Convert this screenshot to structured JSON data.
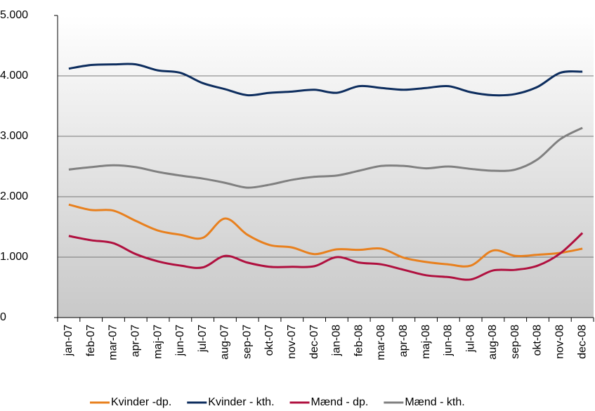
{
  "chart_data": {
    "type": "line",
    "categories": [
      "jan-07",
      "feb-07",
      "mar-07",
      "apr-07",
      "maj-07",
      "jun-07",
      "jul-07",
      "aug-07",
      "sep-07",
      "okt-07",
      "nov-07",
      "dec-07",
      "jan-08",
      "feb-08",
      "mar-08",
      "apr-08",
      "maj-08",
      "jun-08",
      "jul-08",
      "aug-08",
      "sep-08",
      "okt-08",
      "nov-08",
      "dec-08"
    ],
    "series": [
      {
        "name": "Kvinder -dp.",
        "color": "#e8801e",
        "values": [
          1870,
          1780,
          1770,
          1600,
          1440,
          1370,
          1320,
          1640,
          1370,
          1200,
          1160,
          1050,
          1130,
          1120,
          1140,
          990,
          920,
          880,
          860,
          1110,
          1020,
          1040,
          1070,
          1140
        ]
      },
      {
        "name": "Kvinder - kth.",
        "color": "#0d2d5e",
        "values": [
          4120,
          4180,
          4190,
          4190,
          4090,
          4050,
          3880,
          3780,
          3680,
          3720,
          3740,
          3770,
          3720,
          3830,
          3800,
          3770,
          3800,
          3830,
          3730,
          3680,
          3700,
          3820,
          4050,
          4070
        ]
      },
      {
        "name": "Mænd - dp.",
        "color": "#b0103f",
        "values": [
          1350,
          1280,
          1230,
          1050,
          930,
          860,
          830,
          1020,
          910,
          840,
          840,
          850,
          1000,
          910,
          880,
          790,
          700,
          670,
          630,
          780,
          790,
          860,
          1060,
          1400
        ]
      },
      {
        "name": "Mænd - kth.",
        "color": "#808080",
        "values": [
          2450,
          2490,
          2520,
          2490,
          2410,
          2350,
          2300,
          2230,
          2150,
          2200,
          2280,
          2330,
          2350,
          2430,
          2510,
          2510,
          2470,
          2500,
          2460,
          2430,
          2450,
          2620,
          2950,
          3140
        ]
      }
    ],
    "ylim": [
      0,
      5000
    ],
    "yticks": [
      0,
      {
        "value": 1000,
        "label": "1.000"
      },
      {
        "value": 2000,
        "label": "2.000"
      },
      {
        "value": 3000,
        "label": "3.000"
      },
      {
        "value": 4000,
        "label": "4.000"
      },
      {
        "value": 5000,
        "label": "5.000"
      }
    ],
    "grid": true,
    "legend": "bottom"
  }
}
